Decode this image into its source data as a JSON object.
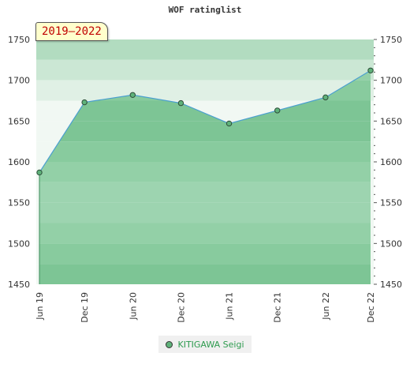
{
  "chart_data": {
    "type": "area",
    "title": "WOF ratinglist",
    "period_badge": "2019–2022",
    "x": [
      "Jun 19",
      "Dec 19",
      "Jun 20",
      "Dec 20",
      "Jun 21",
      "Dec 21",
      "Jun 22",
      "Dec 22"
    ],
    "series": [
      {
        "name": "KITIGAWA Seigi",
        "values": [
          1587,
          1673,
          1682,
          1672,
          1647,
          1663,
          1679,
          1712
        ]
      }
    ],
    "ylim": [
      1450,
      1750
    ],
    "yticks": [
      1450,
      1500,
      1550,
      1600,
      1650,
      1700,
      1750
    ],
    "y_axis_right": true,
    "legend_position": "bottom-center",
    "colors": {
      "line": "#4a9fd0",
      "fill": "#7dc595",
      "marker": "#5fb27a",
      "badge_text": "#c00000",
      "legend_text": "#2e9b4f"
    }
  }
}
